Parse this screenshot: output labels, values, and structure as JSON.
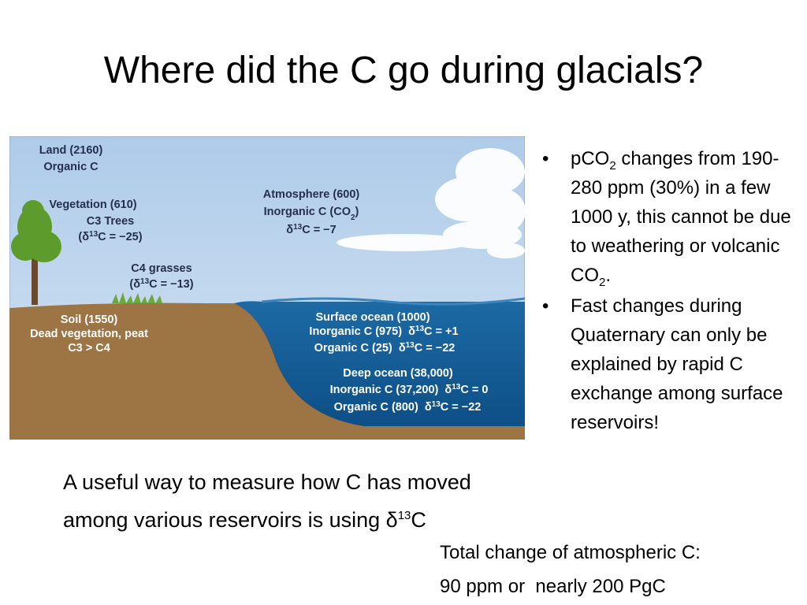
{
  "title": "Where did the C go during glacials?",
  "figure": {
    "land": [
      "Land (2160)",
      "Organic C"
    ],
    "vegetation": [
      "Vegetation (610)",
      "C3 Trees",
      [
        "(δ",
        "13",
        "C = −25)"
      ]
    ],
    "grasses": [
      "C4 grasses",
      [
        "(δ",
        "13",
        "C = −13)"
      ]
    ],
    "soil": [
      "Soil (1550)",
      "Dead vegetation, peat",
      "C3 > C4"
    ],
    "atmosphere": [
      "Atmosphere (600)",
      [
        "Inorganic C (CO",
        "2",
        ")"
      ],
      [
        "δ",
        "13",
        "C = −7"
      ]
    ],
    "surface_ocean": [
      "Surface ocean (1000)",
      [
        "Inorganic C (975)  δ",
        "13",
        "C = +1"
      ],
      [
        "Organic C (25)  δ",
        "13",
        "C = −22"
      ]
    ],
    "deep_ocean": [
      "Deep ocean (38,000)",
      [
        "Inorganic C (37,200)  δ",
        "13",
        "C = 0"
      ],
      [
        "Organic C (800)  δ",
        "13",
        "C = −22"
      ]
    ]
  },
  "bullets": [
    [
      "pCO",
      "2",
      " changes from 190-280 ppm (30%) in a few 1000 y, this cannot be due to weathering or volcanic CO",
      "2",
      "."
    ],
    [
      "Fast changes during Quaternary can only be explained by rapid C exchange among surface reservoirs!"
    ]
  ],
  "note": [
    "A useful way to measure how C has moved among various reservoirs is using δ",
    "13",
    "C"
  ],
  "total": [
    "Total change of atmospheric C:",
    "90 ppm or  nearly 200 PgC"
  ]
}
